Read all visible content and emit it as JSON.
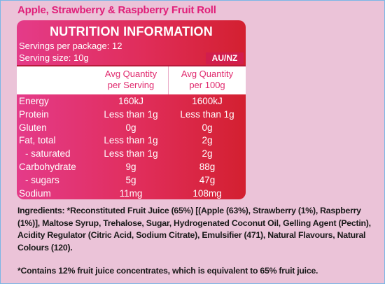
{
  "product_title": "Apple, Strawberry & Raspberry Fruit Roll",
  "nutrition": {
    "title": "NUTRITION INFORMATION",
    "servings_per_package": "Servings per package: 12",
    "serving_size": "Serving size: 10g",
    "region": "AU/NZ",
    "col1_line1": "Avg Quantity",
    "col1_line2": "per Serving",
    "col2_line1": "Avg Quantity",
    "col2_line2": "per 100g",
    "rows": [
      {
        "name": "Energy",
        "per_serving": "160kJ",
        "per_100g": "1600kJ"
      },
      {
        "name": "Protein",
        "per_serving": "Less than 1g",
        "per_100g": "Less than 1g"
      },
      {
        "name": "Gluten",
        "per_serving": "0g",
        "per_100g": "0g"
      },
      {
        "name": "Fat, total",
        "per_serving": "Less than 1g",
        "per_100g": "2g"
      },
      {
        "name": "- saturated",
        "per_serving": "Less than 1g",
        "per_100g": "2g"
      },
      {
        "name": "Carbohydrate",
        "per_serving": "9g",
        "per_100g": "88g"
      },
      {
        "name": "- sugars",
        "per_serving": "5g",
        "per_100g": "47g"
      },
      {
        "name": "Sodium",
        "per_serving": "11mg",
        "per_100g": "108mg"
      }
    ]
  },
  "ingredients": "Ingredients: *Reconstituted Fruit Juice (65%) [(Apple (63%), Strawberry (1%), Raspberry (1%)], Maltose Syrup, Trehalose, Sugar, Hydrogenated Coconut Oil, Gelling Agent (Pectin), Acidity Regulator (Citric Acid, Sodium Citrate), Emulsifier (471), Natural Flavours, Natural Colours (120).",
  "footnote": "*Contains 12% fruit juice concentrates, which is equivalent to 65% fruit juice.",
  "colors": {
    "background": "#ebc3d8",
    "title_pink": "#e01f79",
    "panel_red": "#e02d5a"
  }
}
